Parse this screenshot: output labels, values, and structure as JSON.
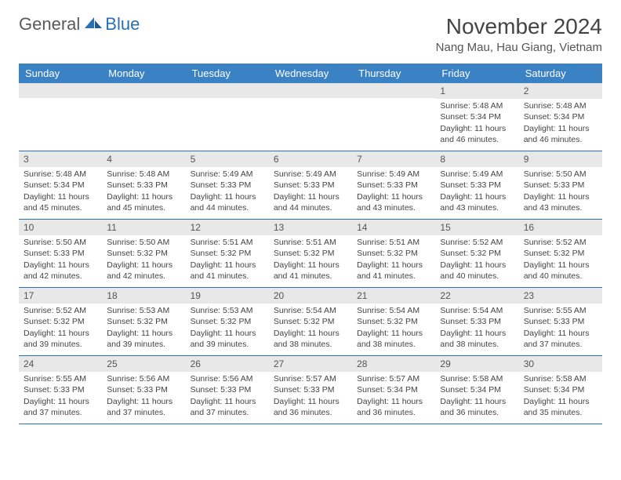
{
  "logo": {
    "text1": "General",
    "text2": "Blue"
  },
  "title": "November 2024",
  "location": "Nang Mau, Hau Giang, Vietnam",
  "colors": {
    "header_bg": "#3b82c4",
    "header_text": "#ffffff",
    "border": "#2b6fb5",
    "daynum_bg": "#e8e8e8",
    "body_text": "#444444",
    "logo_gray": "#5a5a5a",
    "logo_blue": "#2b6fb5"
  },
  "typography": {
    "title_fontsize": 28,
    "location_fontsize": 15,
    "weekday_fontsize": 13,
    "cell_fontsize": 10.5,
    "logo_fontsize": 22
  },
  "weekdays": [
    "Sunday",
    "Monday",
    "Tuesday",
    "Wednesday",
    "Thursday",
    "Friday",
    "Saturday"
  ],
  "weeks": [
    [
      {
        "day": "",
        "sunrise": "",
        "sunset": "",
        "daylight": ""
      },
      {
        "day": "",
        "sunrise": "",
        "sunset": "",
        "daylight": ""
      },
      {
        "day": "",
        "sunrise": "",
        "sunset": "",
        "daylight": ""
      },
      {
        "day": "",
        "sunrise": "",
        "sunset": "",
        "daylight": ""
      },
      {
        "day": "",
        "sunrise": "",
        "sunset": "",
        "daylight": ""
      },
      {
        "day": "1",
        "sunrise": "Sunrise: 5:48 AM",
        "sunset": "Sunset: 5:34 PM",
        "daylight": "Daylight: 11 hours and 46 minutes."
      },
      {
        "day": "2",
        "sunrise": "Sunrise: 5:48 AM",
        "sunset": "Sunset: 5:34 PM",
        "daylight": "Daylight: 11 hours and 46 minutes."
      }
    ],
    [
      {
        "day": "3",
        "sunrise": "Sunrise: 5:48 AM",
        "sunset": "Sunset: 5:34 PM",
        "daylight": "Daylight: 11 hours and 45 minutes."
      },
      {
        "day": "4",
        "sunrise": "Sunrise: 5:48 AM",
        "sunset": "Sunset: 5:33 PM",
        "daylight": "Daylight: 11 hours and 45 minutes."
      },
      {
        "day": "5",
        "sunrise": "Sunrise: 5:49 AM",
        "sunset": "Sunset: 5:33 PM",
        "daylight": "Daylight: 11 hours and 44 minutes."
      },
      {
        "day": "6",
        "sunrise": "Sunrise: 5:49 AM",
        "sunset": "Sunset: 5:33 PM",
        "daylight": "Daylight: 11 hours and 44 minutes."
      },
      {
        "day": "7",
        "sunrise": "Sunrise: 5:49 AM",
        "sunset": "Sunset: 5:33 PM",
        "daylight": "Daylight: 11 hours and 43 minutes."
      },
      {
        "day": "8",
        "sunrise": "Sunrise: 5:49 AM",
        "sunset": "Sunset: 5:33 PM",
        "daylight": "Daylight: 11 hours and 43 minutes."
      },
      {
        "day": "9",
        "sunrise": "Sunrise: 5:50 AM",
        "sunset": "Sunset: 5:33 PM",
        "daylight": "Daylight: 11 hours and 43 minutes."
      }
    ],
    [
      {
        "day": "10",
        "sunrise": "Sunrise: 5:50 AM",
        "sunset": "Sunset: 5:33 PM",
        "daylight": "Daylight: 11 hours and 42 minutes."
      },
      {
        "day": "11",
        "sunrise": "Sunrise: 5:50 AM",
        "sunset": "Sunset: 5:32 PM",
        "daylight": "Daylight: 11 hours and 42 minutes."
      },
      {
        "day": "12",
        "sunrise": "Sunrise: 5:51 AM",
        "sunset": "Sunset: 5:32 PM",
        "daylight": "Daylight: 11 hours and 41 minutes."
      },
      {
        "day": "13",
        "sunrise": "Sunrise: 5:51 AM",
        "sunset": "Sunset: 5:32 PM",
        "daylight": "Daylight: 11 hours and 41 minutes."
      },
      {
        "day": "14",
        "sunrise": "Sunrise: 5:51 AM",
        "sunset": "Sunset: 5:32 PM",
        "daylight": "Daylight: 11 hours and 41 minutes."
      },
      {
        "day": "15",
        "sunrise": "Sunrise: 5:52 AM",
        "sunset": "Sunset: 5:32 PM",
        "daylight": "Daylight: 11 hours and 40 minutes."
      },
      {
        "day": "16",
        "sunrise": "Sunrise: 5:52 AM",
        "sunset": "Sunset: 5:32 PM",
        "daylight": "Daylight: 11 hours and 40 minutes."
      }
    ],
    [
      {
        "day": "17",
        "sunrise": "Sunrise: 5:52 AM",
        "sunset": "Sunset: 5:32 PM",
        "daylight": "Daylight: 11 hours and 39 minutes."
      },
      {
        "day": "18",
        "sunrise": "Sunrise: 5:53 AM",
        "sunset": "Sunset: 5:32 PM",
        "daylight": "Daylight: 11 hours and 39 minutes."
      },
      {
        "day": "19",
        "sunrise": "Sunrise: 5:53 AM",
        "sunset": "Sunset: 5:32 PM",
        "daylight": "Daylight: 11 hours and 39 minutes."
      },
      {
        "day": "20",
        "sunrise": "Sunrise: 5:54 AM",
        "sunset": "Sunset: 5:32 PM",
        "daylight": "Daylight: 11 hours and 38 minutes."
      },
      {
        "day": "21",
        "sunrise": "Sunrise: 5:54 AM",
        "sunset": "Sunset: 5:32 PM",
        "daylight": "Daylight: 11 hours and 38 minutes."
      },
      {
        "day": "22",
        "sunrise": "Sunrise: 5:54 AM",
        "sunset": "Sunset: 5:33 PM",
        "daylight": "Daylight: 11 hours and 38 minutes."
      },
      {
        "day": "23",
        "sunrise": "Sunrise: 5:55 AM",
        "sunset": "Sunset: 5:33 PM",
        "daylight": "Daylight: 11 hours and 37 minutes."
      }
    ],
    [
      {
        "day": "24",
        "sunrise": "Sunrise: 5:55 AM",
        "sunset": "Sunset: 5:33 PM",
        "daylight": "Daylight: 11 hours and 37 minutes."
      },
      {
        "day": "25",
        "sunrise": "Sunrise: 5:56 AM",
        "sunset": "Sunset: 5:33 PM",
        "daylight": "Daylight: 11 hours and 37 minutes."
      },
      {
        "day": "26",
        "sunrise": "Sunrise: 5:56 AM",
        "sunset": "Sunset: 5:33 PM",
        "daylight": "Daylight: 11 hours and 37 minutes."
      },
      {
        "day": "27",
        "sunrise": "Sunrise: 5:57 AM",
        "sunset": "Sunset: 5:33 PM",
        "daylight": "Daylight: 11 hours and 36 minutes."
      },
      {
        "day": "28",
        "sunrise": "Sunrise: 5:57 AM",
        "sunset": "Sunset: 5:34 PM",
        "daylight": "Daylight: 11 hours and 36 minutes."
      },
      {
        "day": "29",
        "sunrise": "Sunrise: 5:58 AM",
        "sunset": "Sunset: 5:34 PM",
        "daylight": "Daylight: 11 hours and 36 minutes."
      },
      {
        "day": "30",
        "sunrise": "Sunrise: 5:58 AM",
        "sunset": "Sunset: 5:34 PM",
        "daylight": "Daylight: 11 hours and 35 minutes."
      }
    ]
  ]
}
